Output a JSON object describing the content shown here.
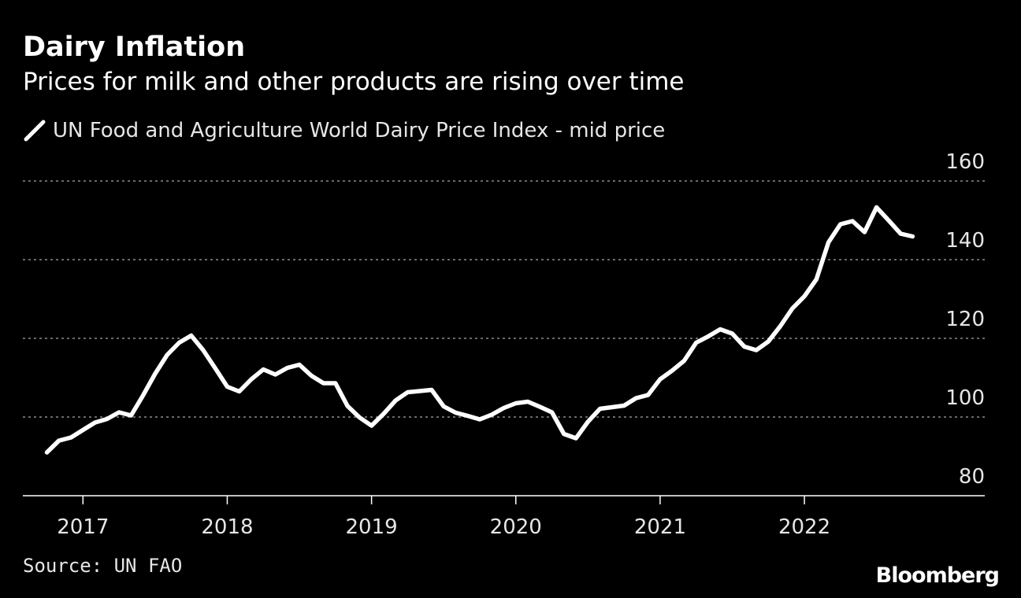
{
  "title": "Dairy Inflation",
  "subtitle": "Prices for milk and other products are rising over time",
  "source": "Source: UN FAO",
  "brand": "Bloomberg",
  "colors": {
    "background": "#000000",
    "line": "#ffffff",
    "grid": "#8c8c8c"
  },
  "chart_data": {
    "type": "line",
    "series": [
      {
        "name": "UN Food and Agriculture World Dairy Price Index - mid price",
        "x": [
          "2016-10",
          "2016-11",
          "2016-12",
          "2017-01",
          "2017-02",
          "2017-03",
          "2017-04",
          "2017-05",
          "2017-06",
          "2017-07",
          "2017-08",
          "2017-09",
          "2017-10",
          "2017-11",
          "2017-12",
          "2018-01",
          "2018-02",
          "2018-03",
          "2018-04",
          "2018-05",
          "2018-06",
          "2018-07",
          "2018-08",
          "2018-09",
          "2018-10",
          "2018-11",
          "2018-12",
          "2019-01",
          "2019-02",
          "2019-03",
          "2019-04",
          "2019-05",
          "2019-06",
          "2019-07",
          "2019-08",
          "2019-09",
          "2019-10",
          "2019-11",
          "2019-12",
          "2020-01",
          "2020-02",
          "2020-03",
          "2020-04",
          "2020-05",
          "2020-06",
          "2020-07",
          "2020-08",
          "2020-09",
          "2020-10",
          "2020-11",
          "2020-12",
          "2021-01",
          "2021-02",
          "2021-03",
          "2021-04",
          "2021-05",
          "2021-06",
          "2021-07",
          "2021-08",
          "2021-09",
          "2021-10",
          "2021-11",
          "2021-12",
          "2022-01",
          "2022-02",
          "2022-03",
          "2022-04",
          "2022-05",
          "2022-06",
          "2022-07",
          "2022-08",
          "2022-09",
          "2022-10"
        ],
        "values": [
          91,
          94,
          94.8,
          96.7,
          98.6,
          99.5,
          101.2,
          100.4,
          105.5,
          111,
          115.8,
          118.9,
          120.7,
          117,
          112.4,
          107.7,
          106.5,
          109.6,
          112.1,
          110.8,
          112.5,
          113.3,
          110.5,
          108.6,
          108.6,
          102.8,
          99.9,
          97.8,
          100.8,
          104.2,
          106.3,
          106.6,
          106.9,
          102.7,
          101.1,
          100.3,
          99.4,
          100.6,
          102.3,
          103.5,
          103.9,
          102.6,
          101.2,
          95.7,
          94.6,
          98.8,
          102.1,
          102.5,
          102.9,
          104.8,
          105.6,
          109.6,
          111.8,
          114.3,
          118.9,
          120.5,
          122.3,
          121.2,
          117.9,
          117,
          119.2,
          123.1,
          127.6,
          130.7,
          135,
          144.4,
          149,
          149.8,
          147,
          153.3,
          150,
          146.6,
          145.9
        ]
      }
    ],
    "xlabel": "",
    "ylabel": "",
    "x_ticks": [
      "2017",
      "2018",
      "2019",
      "2020",
      "2021",
      "2022"
    ],
    "y_ticks": [
      80,
      100,
      120,
      140,
      160
    ],
    "y_tick_labels": [
      "80",
      "100",
      "120",
      "140",
      "160"
    ],
    "ylim": [
      80,
      160
    ],
    "xlim": [
      "2016-08",
      "2023-04"
    ],
    "grid": true,
    "grid_style": "dotted horizontal",
    "y_axis_side": "right",
    "legend_position": "top-left"
  }
}
